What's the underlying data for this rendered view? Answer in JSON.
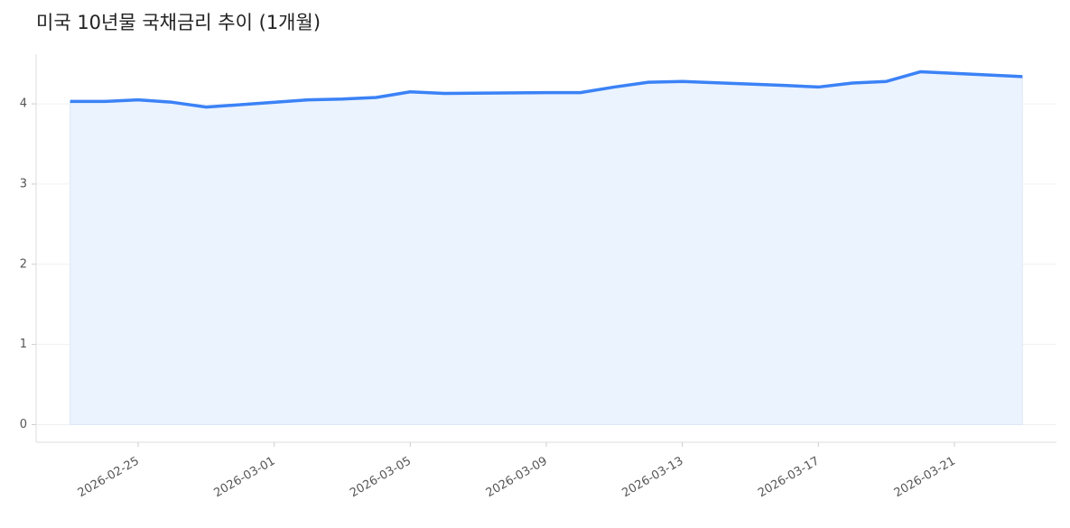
{
  "chart_data": {
    "type": "area",
    "title": "미국 10년물 국채금리 추이 (1개월)",
    "x": [
      "2026-02-23",
      "2026-02-24",
      "2026-02-25",
      "2026-02-26",
      "2026-02-27",
      "2026-03-02",
      "2026-03-03",
      "2026-03-04",
      "2026-03-05",
      "2026-03-06",
      "2026-03-09",
      "2026-03-10",
      "2026-03-11",
      "2026-03-12",
      "2026-03-13",
      "2026-03-16",
      "2026-03-17",
      "2026-03-18",
      "2026-03-19",
      "2026-03-20",
      "2026-03-23"
    ],
    "values": [
      4.03,
      4.03,
      4.05,
      4.02,
      3.96,
      4.05,
      4.06,
      4.08,
      4.15,
      4.13,
      4.14,
      4.14,
      4.21,
      4.27,
      4.28,
      4.23,
      4.21,
      4.26,
      4.28,
      4.4,
      4.34
    ],
    "color": "#3b82f6",
    "fill": "#ebf3ff",
    "xlim": [
      "2026-02-22",
      "2026-03-24"
    ],
    "xticks": [
      "2026-02-25",
      "2026-03-01",
      "2026-03-05",
      "2026-03-09",
      "2026-03-13",
      "2026-03-17",
      "2026-03-21"
    ],
    "ylim": [
      -0.22,
      4.62
    ],
    "yticks": [
      0,
      1,
      2,
      3,
      4
    ],
    "grid": true
  }
}
